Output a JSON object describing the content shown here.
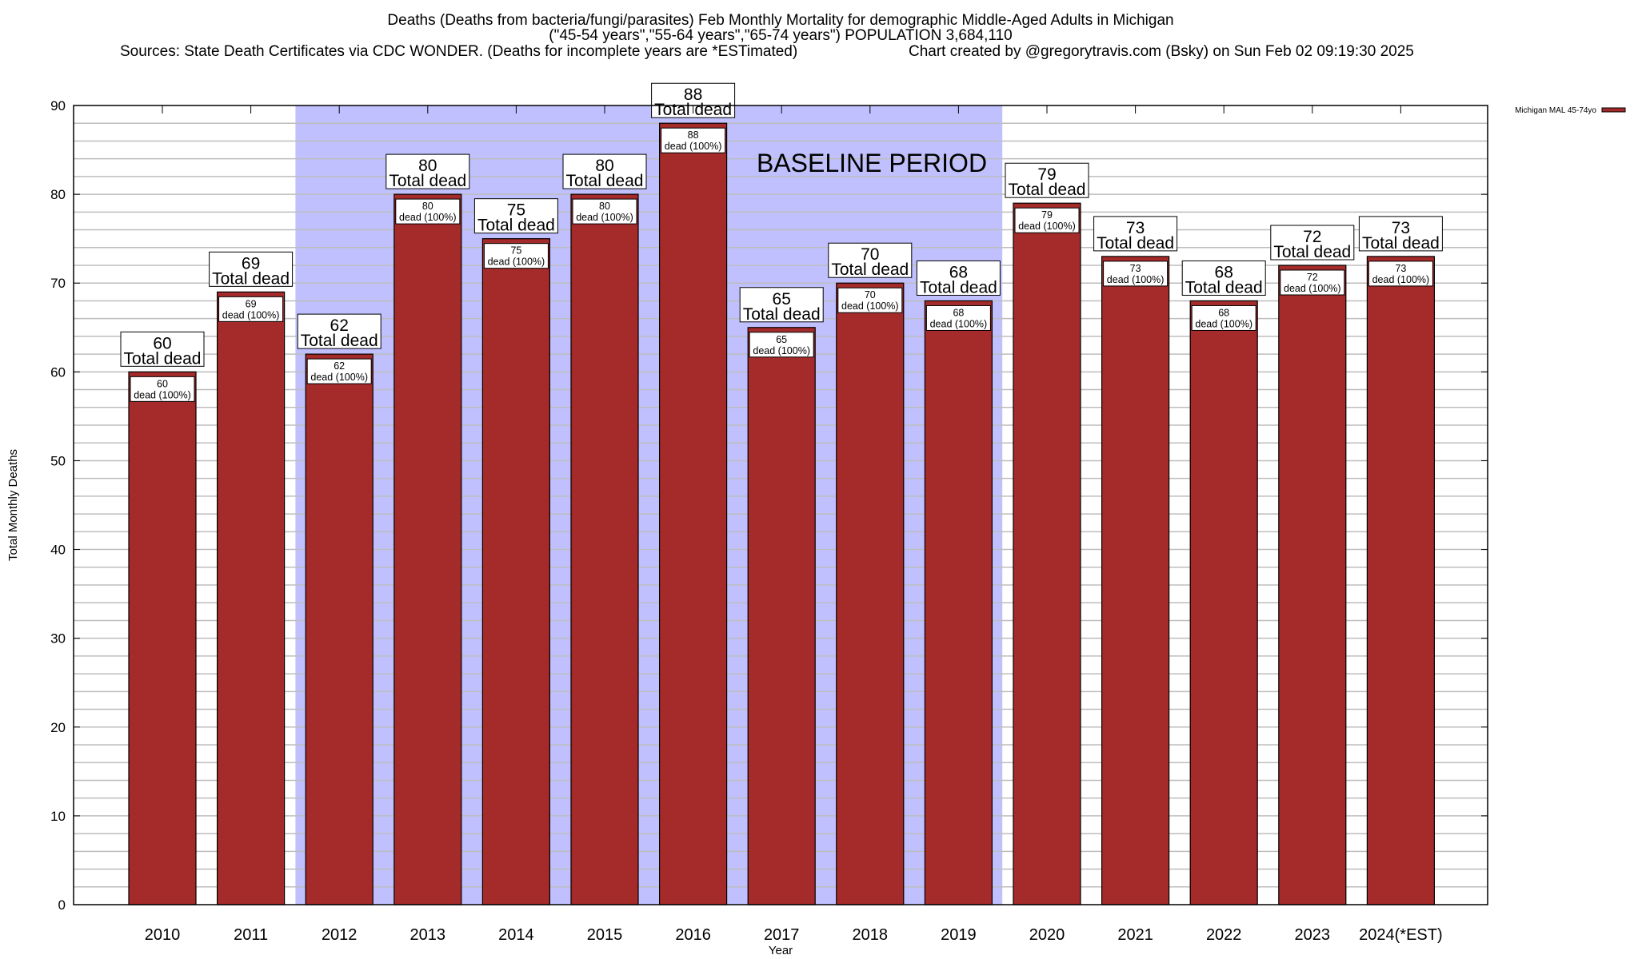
{
  "chart_data": {
    "type": "bar",
    "title_lines": [
      "Deaths (Deaths from bacteria/fungi/parasites) Feb Monthly Mortality for demographic Middle-Aged Adults in Michigan",
      "(\"45-54 years\",\"55-64 years\",\"65-74 years\") POPULATION 3,684,110"
    ],
    "sources": "Sources: State Death Certificates via CDC WONDER. (Deaths for incomplete years are *ESTimated)",
    "credit": "Chart created by @gregorytravis.com (Bsky) on Sun Feb 02 09:19:30 2025",
    "xlabel": "Year",
    "ylabel": "Total Monthly Deaths",
    "ylim": [
      0,
      90
    ],
    "yticks": [
      0,
      10,
      20,
      30,
      40,
      50,
      60,
      70,
      80,
      90
    ],
    "grid": true,
    "categories": [
      "2010",
      "2011",
      "2012",
      "2013",
      "2014",
      "2015",
      "2016",
      "2017",
      "2018",
      "2019",
      "2020",
      "2021",
      "2022",
      "2023",
      "2024(*EST)"
    ],
    "series": [
      {
        "name": "Michigan MAL 45-74yo",
        "color": "#a52a2a",
        "values": [
          60,
          69,
          62,
          80,
          75,
          80,
          88,
          65,
          70,
          68,
          79,
          73,
          68,
          72,
          73
        ]
      }
    ],
    "top_label_suffix": "Total dead",
    "inner_label_suffix": "dead (100%)",
    "baseline": {
      "label": "BASELINE PERIOD",
      "from": "2012",
      "to": "2019",
      "color": "#c0c0ff"
    },
    "legend_position": "top-right"
  }
}
